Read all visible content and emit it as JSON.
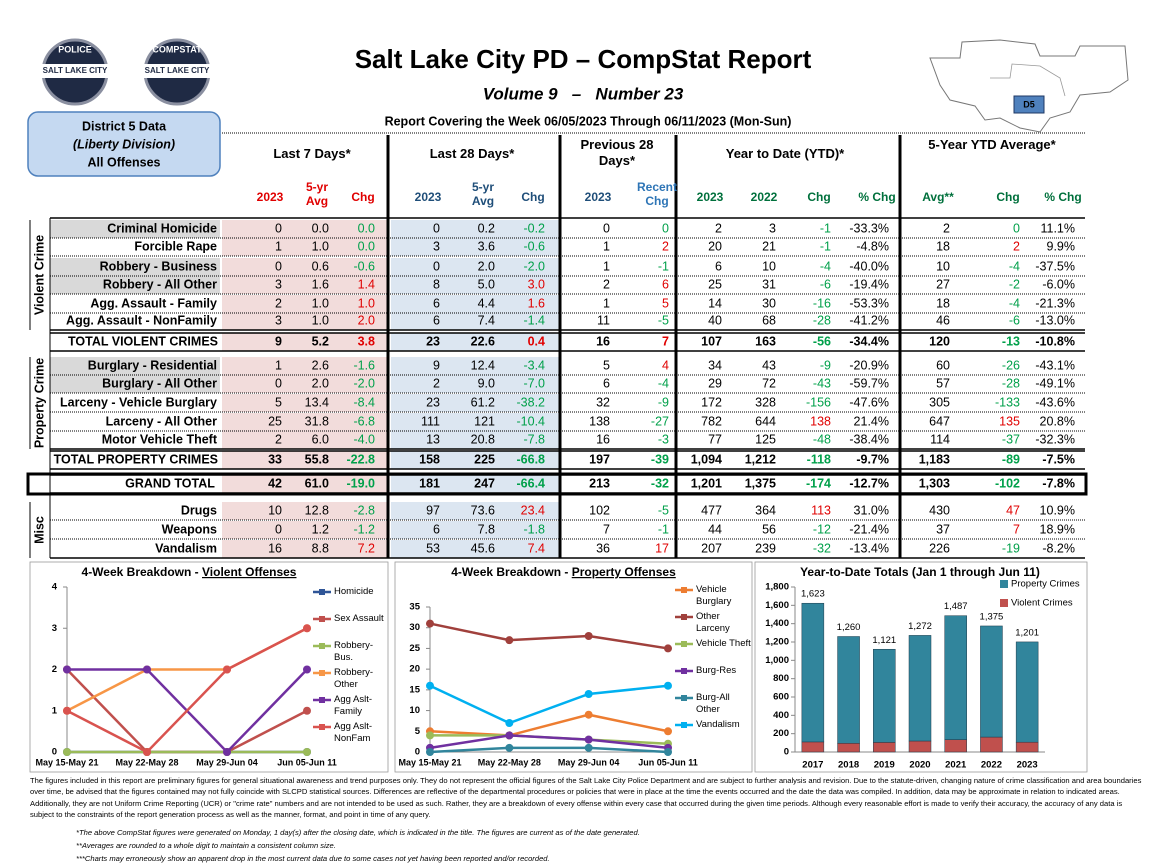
{
  "header": {
    "title": "Salt Lake City PD – CompStat Report",
    "subtitle": "Volume 9   –   Number 23",
    "coverage": "Report Covering the Week 06/05/2023 Through 06/11/2023 (Mon-Sun)",
    "district": [
      "District 5 Data",
      "(Liberty Division)",
      "All Offenses"
    ],
    "logos": [
      [
        "POLICE",
        "SALT LAKE CITY"
      ],
      [
        "COMPSTAT",
        "SALT LAKE CITY"
      ]
    ],
    "map_label": "D5"
  },
  "table": {
    "groups": [
      "Last 7 Days*",
      "Last 28 Days*",
      "Previous 28 Days*",
      "Year to Date (YTD)*",
      "5-Year YTD Average*"
    ],
    "subheaders": [
      "2023",
      "5-yr Avg",
      "Chg",
      "2023",
      "5-yr Avg",
      "Chg",
      "2023",
      "Recent Chg",
      "2023",
      "2022",
      "Chg",
      "% Chg",
      "Avg**",
      "Chg",
      "% Chg"
    ],
    "section_labels": [
      "Violent Crime",
      "Property Crime",
      "Misc"
    ],
    "rows": [
      {
        "label": "Criminal Homicide",
        "cells": [
          "0",
          "0.0",
          "0.0",
          "0",
          "0.2",
          "-0.2",
          "0",
          "0",
          "2",
          "3",
          "-1",
          "-33.3%",
          "2",
          "0",
          "11.1%"
        ]
      },
      {
        "label": "Forcible Rape",
        "cells": [
          "1",
          "1.0",
          "0.0",
          "3",
          "3.6",
          "-0.6",
          "1",
          "2",
          "20",
          "21",
          "-1",
          "-4.8%",
          "18",
          "2",
          "9.9%"
        ]
      },
      {
        "label": "Robbery - Business",
        "cells": [
          "0",
          "0.6",
          "-0.6",
          "0",
          "2.0",
          "-2.0",
          "1",
          "-1",
          "6",
          "10",
          "-4",
          "-40.0%",
          "10",
          "-4",
          "-37.5%"
        ]
      },
      {
        "label": "Robbery - All Other",
        "cells": [
          "3",
          "1.6",
          "1.4",
          "8",
          "5.0",
          "3.0",
          "2",
          "6",
          "25",
          "31",
          "-6",
          "-19.4%",
          "27",
          "-2",
          "-6.0%"
        ]
      },
      {
        "label": "Agg. Assault - Family",
        "cells": [
          "2",
          "1.0",
          "1.0",
          "6",
          "4.4",
          "1.6",
          "1",
          "5",
          "14",
          "30",
          "-16",
          "-53.3%",
          "18",
          "-4",
          "-21.3%"
        ]
      },
      {
        "label": "Agg. Assault - NonFamily",
        "cells": [
          "3",
          "1.0",
          "2.0",
          "6",
          "7.4",
          "-1.4",
          "11",
          "-5",
          "40",
          "68",
          "-28",
          "-41.2%",
          "46",
          "-6",
          "-13.0%"
        ]
      },
      {
        "label": "TOTAL VIOLENT CRIMES",
        "cells": [
          "9",
          "5.2",
          "3.8",
          "23",
          "22.6",
          "0.4",
          "16",
          "7",
          "107",
          "163",
          "-56",
          "-34.4%",
          "120",
          "-13",
          "-10.8%"
        ]
      },
      {
        "label": "Burglary - Residential",
        "cells": [
          "1",
          "2.6",
          "-1.6",
          "9",
          "12.4",
          "-3.4",
          "5",
          "4",
          "34",
          "43",
          "-9",
          "-20.9%",
          "60",
          "-26",
          "-43.1%"
        ]
      },
      {
        "label": "Burglary - All Other",
        "cells": [
          "0",
          "2.0",
          "-2.0",
          "2",
          "9.0",
          "-7.0",
          "6",
          "-4",
          "29",
          "72",
          "-43",
          "-59.7%",
          "57",
          "-28",
          "-49.1%"
        ]
      },
      {
        "label": "Larceny - Vehicle Burglary",
        "cells": [
          "5",
          "13.4",
          "-8.4",
          "23",
          "61.2",
          "-38.2",
          "32",
          "-9",
          "172",
          "328",
          "-156",
          "-47.6%",
          "305",
          "-133",
          "-43.6%"
        ]
      },
      {
        "label": "Larceny - All Other",
        "cells": [
          "25",
          "31.8",
          "-6.8",
          "111",
          "121",
          "-10.4",
          "138",
          "-27",
          "782",
          "644",
          "138",
          "21.4%",
          "647",
          "135",
          "20.8%"
        ]
      },
      {
        "label": "Motor Vehicle Theft",
        "cells": [
          "2",
          "6.0",
          "-4.0",
          "13",
          "20.8",
          "-7.8",
          "16",
          "-3",
          "77",
          "125",
          "-48",
          "-38.4%",
          "114",
          "-37",
          "-32.3%"
        ]
      },
      {
        "label": "TOTAL PROPERTY CRIMES",
        "cells": [
          "33",
          "55.8",
          "-22.8",
          "158",
          "225",
          "-66.8",
          "197",
          "-39",
          "1,094",
          "1,212",
          "-118",
          "-9.7%",
          "1,183",
          "-89",
          "-7.5%"
        ]
      },
      {
        "label": "GRAND TOTAL",
        "cells": [
          "42",
          "61.0",
          "-19.0",
          "181",
          "247",
          "-66.4",
          "213",
          "-32",
          "1,201",
          "1,375",
          "-174",
          "-12.7%",
          "1,303",
          "-102",
          "-7.8%"
        ]
      },
      {
        "label": "Drugs",
        "cells": [
          "10",
          "12.8",
          "-2.8",
          "97",
          "73.6",
          "23.4",
          "102",
          "-5",
          "477",
          "364",
          "113",
          "31.0%",
          "430",
          "47",
          "10.9%"
        ]
      },
      {
        "label": "Weapons",
        "cells": [
          "0",
          "1.2",
          "-1.2",
          "6",
          "7.8",
          "-1.8",
          "7",
          "-1",
          "44",
          "56",
          "-12",
          "-21.4%",
          "37",
          "7",
          "18.9%"
        ]
      },
      {
        "label": "Vandalism",
        "cells": [
          "16",
          "8.8",
          "7.2",
          "53",
          "45.6",
          "7.4",
          "36",
          "17",
          "207",
          "239",
          "-32",
          "-13.4%",
          "226",
          "-19",
          "-8.2%"
        ]
      }
    ]
  },
  "chart_data": [
    {
      "type": "line",
      "title": "4-Week Breakdown - ",
      "title_emphasis": "Violent Offenses",
      "categories": [
        "May 15-May 21",
        "May 22-May 28",
        "May 29-Jun 04",
        "Jun 05-Jun 11"
      ],
      "ylim": [
        0,
        4
      ],
      "yticks": [
        0,
        1,
        2,
        3,
        4
      ],
      "series": [
        {
          "name": "Homicide",
          "color": "#2f5597",
          "values": [
            0,
            0,
            0,
            0
          ]
        },
        {
          "name": "Sex Assault",
          "color": "#c0504d",
          "values": [
            2,
            0,
            0,
            1
          ]
        },
        {
          "name": "Robbery-Bus.",
          "color": "#9bbb59",
          "values": [
            0,
            0,
            0,
            0
          ]
        },
        {
          "name": "Robbery-Other",
          "color": "#f79646",
          "values": [
            1,
            2,
            2,
            3
          ]
        },
        {
          "name": "Agg Aslt-Family",
          "color": "#7030a0",
          "values": [
            2,
            2,
            0,
            2
          ]
        },
        {
          "name": "Agg Aslt-NonFam",
          "color": "#d9534f",
          "values": [
            1,
            0,
            2,
            3
          ]
        }
      ]
    },
    {
      "type": "line",
      "title": "4-Week Breakdown - ",
      "title_emphasis": "Property Offenses",
      "categories": [
        "May 15-May 21",
        "May 22-May 28",
        "May 29-Jun 04",
        "Jun 05-Jun 11"
      ],
      "ylim": [
        0,
        35
      ],
      "yticks": [
        0,
        5,
        10,
        15,
        20,
        25,
        30,
        35
      ],
      "series": [
        {
          "name": "Vehicle Burglary",
          "color": "#ed7d31",
          "values": [
            5,
            4,
            9,
            5
          ]
        },
        {
          "name": "Other Larceny",
          "color": "#a0403c",
          "values": [
            31,
            27,
            28,
            25
          ]
        },
        {
          "name": "Vehicle Theft",
          "color": "#9bbb59",
          "values": [
            4,
            4,
            3,
            2
          ]
        },
        {
          "name": "Burg-Res",
          "color": "#7030a0",
          "values": [
            1,
            4,
            3,
            1
          ]
        },
        {
          "name": "Burg-All Other",
          "color": "#31859c",
          "values": [
            0,
            1,
            1,
            0
          ]
        },
        {
          "name": "Vandalism",
          "color": "#00b0f0",
          "values": [
            16,
            7,
            14,
            16
          ]
        }
      ]
    },
    {
      "type": "stacked_bar",
      "title": "Year-to-Date Totals (Jan 1 through Jun 11)",
      "categories": [
        "2017",
        "2018",
        "2019",
        "2020",
        "2021",
        "2022",
        "2023"
      ],
      "ylim": [
        0,
        1800
      ],
      "yticks": [
        0,
        200,
        400,
        600,
        800,
        {
          "value": 1000,
          "label": "1,000"
        },
        {
          "value": 1200,
          "label": "1,200"
        },
        {
          "value": 1400,
          "label": "1,400"
        },
        {
          "value": 1600,
          "label": "1,600"
        },
        {
          "value": 1800,
          "label": "1,800"
        }
      ],
      "series": [
        {
          "name": "Violent Crimes",
          "color": "#c0504d",
          "values": [
            110,
            95,
            105,
            120,
            135,
            163,
            107
          ]
        },
        {
          "name": "Property Crimes",
          "color": "#31859c",
          "values": [
            1513,
            1165,
            1016,
            1152,
            1352,
            1212,
            1094
          ]
        }
      ],
      "total_labels": [
        "1,623",
        "1,260",
        "1,121",
        "1,272",
        "1,487",
        "1,375",
        "1,201"
      ]
    }
  ],
  "footnotes": {
    "paragraph": "The figures included in this report are preliminary figures for general situational awareness and trend purposes only. They do not represent the official figures of the Salt Lake City Police Department and are subject to further analysis and revision. Due to the statute-driven, changing nature of crime classification and area boundaries over time, be advised that the figures contained may not fully coincide with SLCPD statistical sources. Differences are reflective of the departmental procedures or policies that were in place at the time the events occurred and the date the data was compiled. In addition, data may be approximate in relation to indicated areas. Additionally, they are not Uniform Crime Reporting (UCR) or \"crime rate\" numbers and are not intended to be used as such. Rather, they are a breakdown of every offense within every case that occurred during the given time periods. Although every reasonable effort is made to verify their accuracy, the accuracy of any data is subject to the constraints of the report generation process as well as the manner, format, and point in time of any query.",
    "notes": [
      "*The above CompStat figures were generated on Monday, 1 day(s) after the closing date, which is indicated in the title. The figures are current as of the date generated.",
      "**Averages are rounded to a whole digit to maintain a consistent column size.",
      "***Charts may erroneously show an apparent drop in the most current data due to some cases not yet having been reported and/or recorded."
    ]
  }
}
